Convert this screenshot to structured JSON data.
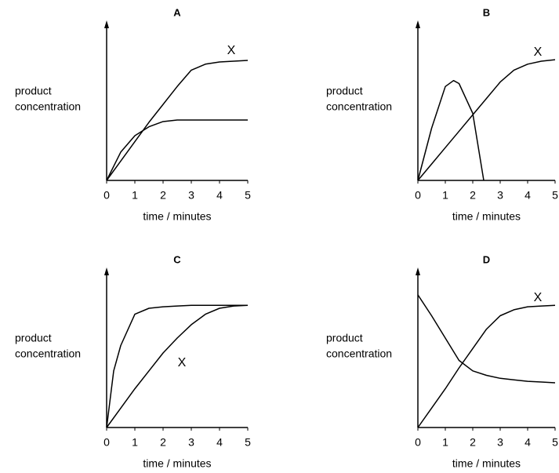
{
  "chart_data": [
    {
      "type": "line",
      "title": "A",
      "ylabel": [
        "product",
        "concentration"
      ],
      "xlabel": "time / minutes",
      "xlim": [
        0,
        5
      ],
      "xticks": [
        0,
        1,
        2,
        3,
        4,
        5
      ],
      "ylim": [
        0,
        10
      ],
      "annotation": "X",
      "series": [
        {
          "color": "#000000",
          "x": [
            0,
            0.5,
            1,
            1.5,
            2,
            2.5,
            3,
            3.5,
            4,
            4.5,
            5
          ],
          "values": [
            0,
            1.3,
            2.6,
            3.9,
            5.1,
            6.3,
            7.4,
            7.8,
            7.95,
            8.0,
            8.05
          ]
        },
        {
          "color": "#000000",
          "x": [
            0,
            0.5,
            1,
            1.5,
            2,
            2.5,
            3,
            3.5,
            4,
            4.5,
            5
          ],
          "values": [
            0,
            1.9,
            3.0,
            3.6,
            3.95,
            4.05,
            4.05,
            4.05,
            4.05,
            4.05,
            4.05
          ]
        }
      ]
    },
    {
      "type": "line",
      "title": "B",
      "ylabel": [
        "product",
        "concentration"
      ],
      "xlabel": "time / minutes",
      "xlim": [
        0,
        5
      ],
      "xticks": [
        0,
        1,
        2,
        3,
        4,
        5
      ],
      "ylim": [
        0,
        10
      ],
      "annotation": "X",
      "series": [
        {
          "color": "#000000",
          "x": [
            0,
            0.5,
            1,
            1.5,
            2,
            2.5,
            3,
            3.5,
            4,
            4.5,
            5
          ],
          "values": [
            0,
            1.1,
            2.2,
            3.3,
            4.4,
            5.5,
            6.6,
            7.4,
            7.8,
            8.0,
            8.1
          ]
        },
        {
          "color": "#000000",
          "x": [
            0,
            0.5,
            1,
            1.3,
            1.5,
            2,
            2.4
          ],
          "values": [
            0,
            3.5,
            6.3,
            6.7,
            6.5,
            4.5,
            0
          ]
        }
      ]
    },
    {
      "type": "line",
      "title": "C",
      "ylabel": [
        "product",
        "concentration"
      ],
      "xlabel": "time / minutes",
      "xlim": [
        0,
        5
      ],
      "xticks": [
        0,
        1,
        2,
        3,
        4,
        5
      ],
      "ylim": [
        0,
        10
      ],
      "annotation": "X",
      "series": [
        {
          "color": "#000000",
          "x": [
            0,
            0.5,
            1,
            1.5,
            2,
            2.5,
            3,
            3.5,
            4,
            4.5,
            5
          ],
          "values": [
            0,
            1.3,
            2.6,
            3.8,
            5.0,
            6.0,
            6.9,
            7.6,
            8.0,
            8.15,
            8.2
          ]
        },
        {
          "color": "#000000",
          "x": [
            0,
            0.25,
            0.5,
            1,
            1.5,
            2,
            2.5,
            3,
            4,
            5
          ],
          "values": [
            0,
            3.8,
            5.5,
            7.6,
            8.0,
            8.1,
            8.15,
            8.2,
            8.2,
            8.2
          ]
        }
      ]
    },
    {
      "type": "line",
      "title": "D",
      "ylabel": [
        "product",
        "concentration"
      ],
      "xlabel": "time / minutes",
      "xlim": [
        0,
        5
      ],
      "xticks": [
        0,
        1,
        2,
        3,
        4,
        5
      ],
      "ylim": [
        0,
        10
      ],
      "annotation": "X",
      "series": [
        {
          "color": "#000000",
          "x": [
            0,
            0.5,
            1,
            1.5,
            2,
            2.5,
            3,
            3.5,
            4,
            4.5,
            5
          ],
          "values": [
            0,
            1.3,
            2.6,
            4.0,
            5.3,
            6.6,
            7.5,
            7.9,
            8.1,
            8.15,
            8.2
          ]
        },
        {
          "color": "#000000",
          "x": [
            0,
            0.5,
            1,
            1.5,
            2,
            2.5,
            3,
            3.5,
            4,
            4.5,
            5
          ],
          "values": [
            8.9,
            7.5,
            6.0,
            4.5,
            3.8,
            3.5,
            3.3,
            3.2,
            3.1,
            3.05,
            3.0
          ]
        }
      ]
    }
  ]
}
